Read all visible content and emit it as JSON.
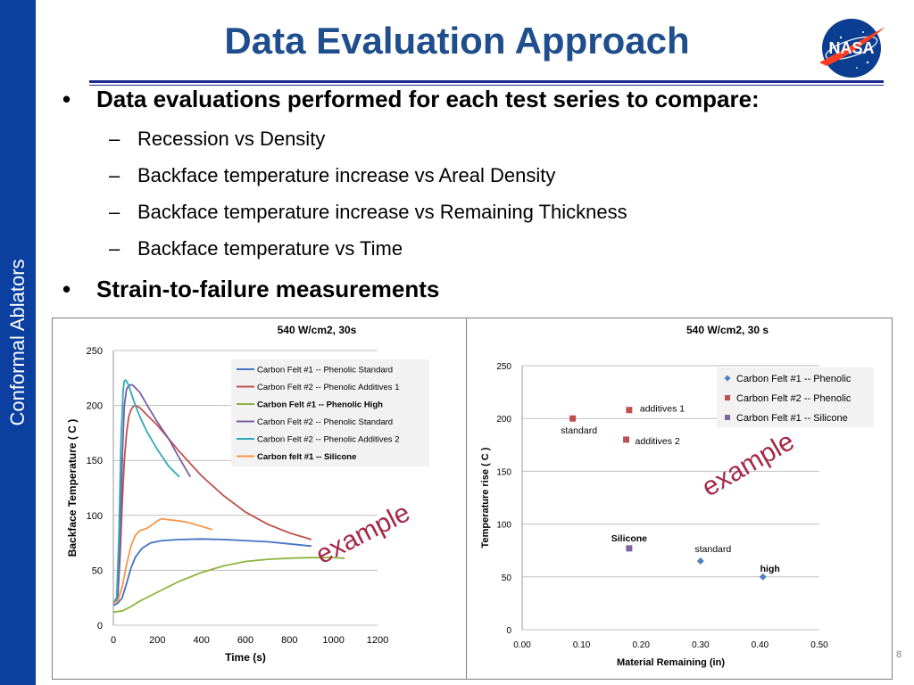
{
  "slide": {
    "title": "Data Evaluation Approach",
    "sidebar_text": "Conformal Ablators",
    "logo_text": "NASA",
    "page_number": "8",
    "bullets": [
      {
        "text": "Data evaluations performed for each test series to compare:",
        "subs": [
          "Recession vs Density",
          "Backface temperature increase vs Areal Density",
          "Backface temperature increase vs Remaining Thickness",
          "Backface temperature vs Time"
        ]
      },
      {
        "text": "Strain-to-failure measurements",
        "subs": []
      }
    ],
    "colors": {
      "sidebar": "#0b3fa0",
      "title": "#1f4e8c",
      "rule": "#1c2b8f",
      "watermark": "#a5284b"
    }
  },
  "chart_data": [
    {
      "type": "line",
      "title": "540 W/cm2, 30s",
      "xlabel": "Time (s)",
      "ylabel": "Backface Temperature ( C )",
      "xlim": [
        0,
        1200
      ],
      "ylim": [
        0,
        250
      ],
      "xticks": [
        "0",
        "200",
        "400",
        "600",
        "800",
        "1000",
        "1200"
      ],
      "yticks": [
        "0",
        "50",
        "100",
        "150",
        "200",
        "250"
      ],
      "grid": "horizontal",
      "legend": "top-right",
      "watermark": "example",
      "series": [
        {
          "name": "Carbon Felt #1 -- Phenolic Standard",
          "color": "#4472c4",
          "bold": false,
          "x": [
            0,
            20,
            40,
            60,
            80,
            100,
            130,
            170,
            220,
            300,
            400,
            500,
            600,
            700,
            800,
            900
          ],
          "y": [
            18,
            20,
            25,
            38,
            52,
            62,
            70,
            75,
            77,
            78,
            78.5,
            78,
            77,
            76,
            74,
            72
          ]
        },
        {
          "name": "Carbon Felt #2 -- Phenolic Additives 1",
          "color": "#c0504d",
          "bold": false,
          "x": [
            0,
            20,
            30,
            40,
            50,
            60,
            70,
            80,
            90,
            100,
            120,
            150,
            200,
            250,
            300,
            400,
            500,
            600,
            700,
            800,
            900
          ],
          "y": [
            20,
            25,
            60,
            110,
            150,
            175,
            190,
            196,
            199,
            200,
            198,
            192,
            182,
            170,
            158,
            136,
            118,
            103,
            92,
            84,
            78
          ]
        },
        {
          "name": "Carbon Felt #1 --  Phenolic High",
          "color": "#8db33e",
          "bold": true,
          "x": [
            0,
            40,
            80,
            120,
            160,
            200,
            300,
            400,
            500,
            600,
            700,
            800,
            900,
            1000,
            1050
          ],
          "y": [
            12,
            13,
            17,
            22,
            26,
            30,
            40,
            48,
            54,
            58,
            60,
            61,
            61.5,
            61.5,
            61
          ]
        },
        {
          "name": "Carbon Felt #2 -- Phenolic Standard",
          "color": "#7a5ca6",
          "bold": false,
          "x": [
            0,
            20,
            30,
            40,
            50,
            60,
            70,
            80,
            90,
            100,
            120,
            140,
            160,
            200,
            250,
            300,
            350
          ],
          "y": [
            20,
            25,
            70,
            150,
            200,
            215,
            218,
            219,
            218,
            216,
            212,
            205,
            198,
            185,
            170,
            152,
            135
          ]
        },
        {
          "name": "Carbon Felt #2 -- Phenolic Additives 2",
          "color": "#31a9b8",
          "bold": false,
          "x": [
            0,
            15,
            25,
            35,
            45,
            50,
            55,
            60,
            70,
            80,
            90,
            100,
            120,
            150,
            200,
            250,
            300
          ],
          "y": [
            20,
            25,
            80,
            170,
            215,
            222,
            223,
            222,
            218,
            212,
            206,
            200,
            190,
            177,
            160,
            145,
            135
          ]
        },
        {
          "name": "Carbon felt #1 -- Silicone",
          "color": "#f79646",
          "bold": true,
          "x": [
            0,
            20,
            40,
            60,
            80,
            100,
            120,
            150,
            180,
            200,
            220,
            250,
            300,
            350,
            400,
            450
          ],
          "y": [
            20,
            22,
            35,
            55,
            72,
            82,
            86,
            88,
            92,
            95,
            97,
            96,
            95,
            93,
            90,
            87
          ]
        }
      ]
    },
    {
      "type": "scatter",
      "title": "540 W/cm2, 30 s",
      "xlabel": "Material Remaining  (in)",
      "ylabel": "Temperature rise ( C )",
      "xlim": [
        0.0,
        0.5
      ],
      "ylim": [
        0,
        250
      ],
      "xticks": [
        "0.00",
        "0.10",
        "0.20",
        "0.30",
        "0.40",
        "0.50"
      ],
      "yticks": [
        "0",
        "50",
        "100",
        "150",
        "200",
        "250"
      ],
      "grid": "horizontal",
      "legend": "top-right",
      "watermark": "example",
      "series": [
        {
          "name": "Carbon Felt #1 -- Phenolic",
          "color": "#4f81bd",
          "marker": "diamond",
          "points": [
            {
              "x": 0.3,
              "y": 65,
              "label": "standard",
              "bold": false
            },
            {
              "x": 0.405,
              "y": 50,
              "label": "high",
              "bold": true
            }
          ]
        },
        {
          "name": "Carbon Felt #2 -- Phenolic",
          "color": "#c0504d",
          "marker": "square",
          "points": [
            {
              "x": 0.085,
              "y": 200,
              "label": "standard",
              "bold": false
            },
            {
              "x": 0.18,
              "y": 208,
              "label": "additives 1",
              "bold": false
            },
            {
              "x": 0.175,
              "y": 180,
              "label": "additives 2",
              "bold": false
            }
          ]
        },
        {
          "name": "Carbon Felt #1 -- Silicone",
          "color": "#8064a2",
          "marker": "square",
          "points": [
            {
              "x": 0.18,
              "y": 77,
              "label": "Silicone",
              "bold": true
            }
          ]
        }
      ]
    }
  ]
}
